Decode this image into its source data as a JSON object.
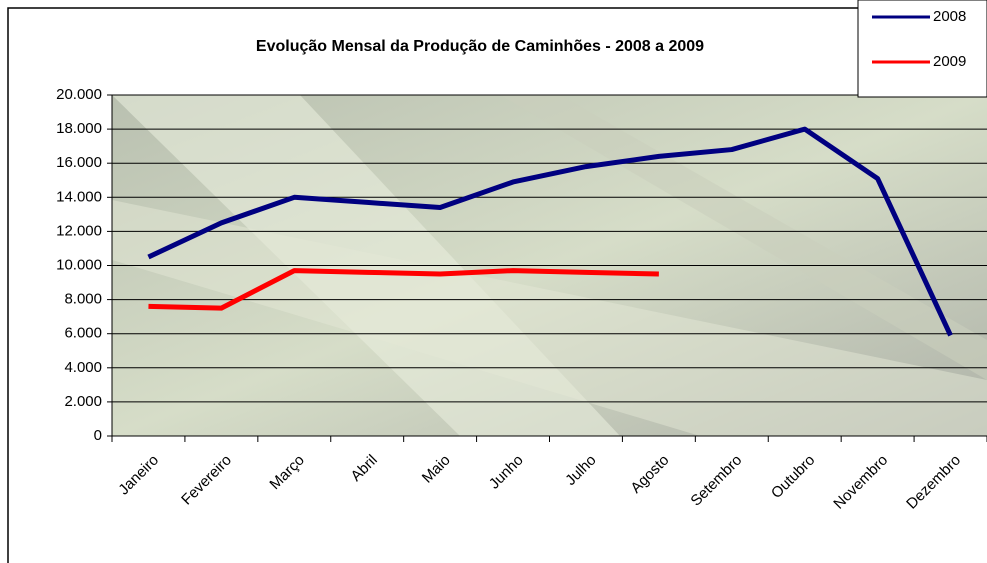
{
  "chart_data": {
    "type": "line",
    "title": "Evolução Mensal da Produção de Caminhões  - 2008 a 2009",
    "categories": [
      "Janeiro",
      "Fevereiro",
      "Março",
      "Abril",
      "Maio",
      "Junho",
      "Julho",
      "Agosto",
      "Setembro",
      "Outubro",
      "Novembro",
      "Dezembro"
    ],
    "series": [
      {
        "name": "2008",
        "color": "#000080",
        "values": [
          10500,
          12500,
          14000,
          13700,
          13400,
          14900,
          15800,
          16400,
          16800,
          18000,
          15100,
          5900
        ]
      },
      {
        "name": "2009",
        "color": "#ff0000",
        "values": [
          7600,
          7500,
          9700,
          9600,
          9500,
          9700,
          9600,
          9500,
          null,
          null,
          null,
          null
        ]
      }
    ],
    "ylim": [
      0,
      20000
    ],
    "yticks": [
      0,
      {
        "value": 2000,
        "label": "2.000"
      },
      {
        "value": 4000,
        "label": "4.000"
      },
      {
        "value": 6000,
        "label": "6.000"
      },
      {
        "value": 8000,
        "label": "8.000"
      },
      {
        "value": 10000,
        "label": "10.000"
      },
      {
        "value": 12000,
        "label": "12.000"
      },
      {
        "value": 14000,
        "label": "14.000"
      },
      {
        "value": 16000,
        "label": "16.000"
      },
      {
        "value": 18000,
        "label": "18.000"
      },
      {
        "value": 20000,
        "label": "20.000"
      }
    ],
    "grid": true,
    "legend": "top-right"
  }
}
